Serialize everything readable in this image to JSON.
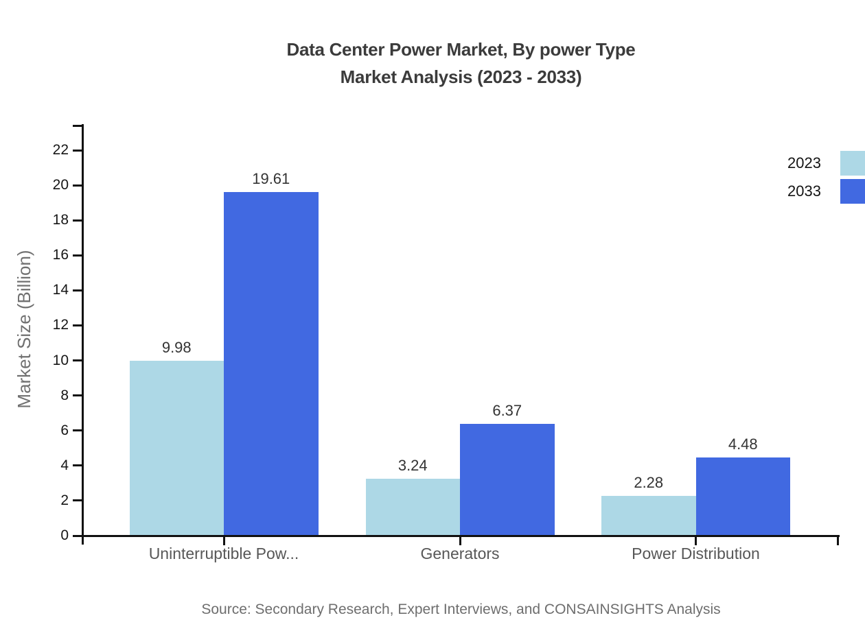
{
  "title": {
    "line1": "Data Center Power Market, By power Type",
    "line2": "Market Analysis (2023 - 2033)"
  },
  "source": "Source: Secondary Research, Expert Interviews, and CONSAINSIGHTS Analysis",
  "chart_data": {
    "type": "bar",
    "title": "Data Center Power Market, By power Type Market Analysis (2023 - 2033)",
    "categories": [
      "Uninterruptible Pow...",
      "Generators",
      "Power Distribution"
    ],
    "series": [
      {
        "name": "2023",
        "color": "#ADD8E6",
        "values": [
          9.98,
          3.24,
          2.28
        ]
      },
      {
        "name": "2033",
        "color": "#4169E1",
        "values": [
          19.61,
          6.37,
          4.48
        ]
      }
    ],
    "xlabel": "",
    "ylabel": "Market Size (Billion)",
    "ylim": [
      0,
      23.5
    ],
    "yticks": [
      0,
      2,
      4,
      6,
      8,
      10,
      12,
      14,
      16,
      18,
      20,
      22
    ],
    "grid": false,
    "legend_position": "top-right",
    "value_labels": true,
    "axis_color": "#111111",
    "value_label_color": "#333333",
    "category_label_color": "#575757"
  }
}
